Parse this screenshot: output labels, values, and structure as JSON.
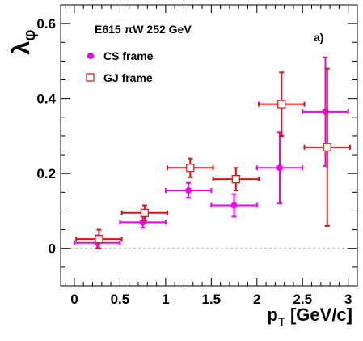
{
  "chart_data": {
    "type": "scatter",
    "title": "",
    "ylabel_symbol": "λ",
    "ylabel_subscript": "φ",
    "xlabel_main": "p",
    "xlabel_subscript": "T",
    "xlabel_unit": " [GeV/c]",
    "header": "E615 πW 252 GeV",
    "panel_label": "a)",
    "xlim": [
      -0.15,
      3.1
    ],
    "ylim": [
      -0.1,
      0.65
    ],
    "x_ticks": [
      0,
      0.5,
      1,
      1.5,
      2,
      2.5,
      3
    ],
    "x_tick_labels": [
      "0",
      "0.5",
      "1",
      "1.5",
      "2",
      "2.5",
      "3"
    ],
    "y_ticks": [
      0,
      0.2,
      0.4,
      0.6
    ],
    "y_tick_labels": [
      "0",
      "0.2",
      "0.4",
      "0.6"
    ],
    "reference_line_y": 0,
    "legend_position": "top-left",
    "series": [
      {
        "name": "CS frame",
        "color": "#ee00ee",
        "marker": "filled-circle",
        "points": [
          {
            "x": 0.25,
            "y": 0.015,
            "xerr": 0.25,
            "ylo": 0.015,
            "yhi": 0.02
          },
          {
            "x": 0.75,
            "y": 0.07,
            "xerr": 0.25,
            "ylo": 0.015,
            "yhi": 0.015
          },
          {
            "x": 1.25,
            "y": 0.155,
            "xerr": 0.25,
            "ylo": 0.02,
            "yhi": 0.02
          },
          {
            "x": 1.75,
            "y": 0.115,
            "xerr": 0.25,
            "ylo": 0.03,
            "yhi": 0.03
          },
          {
            "x": 2.25,
            "y": 0.215,
            "xerr": 0.25,
            "ylo": 0.095,
            "yhi": 0.095
          },
          {
            "x": 2.75,
            "y": 0.365,
            "xerr": 0.25,
            "ylo": 0.145,
            "yhi": 0.145
          }
        ]
      },
      {
        "name": "GJ frame",
        "color": "#dd1111",
        "marker": "open-square",
        "points": [
          {
            "x": 0.27,
            "y": 0.025,
            "xerr": 0.25,
            "ylo": 0.025,
            "yhi": 0.025
          },
          {
            "x": 0.77,
            "y": 0.095,
            "xerr": 0.25,
            "ylo": 0.02,
            "yhi": 0.02
          },
          {
            "x": 1.27,
            "y": 0.215,
            "xerr": 0.25,
            "ylo": 0.025,
            "yhi": 0.025
          },
          {
            "x": 1.77,
            "y": 0.185,
            "xerr": 0.25,
            "ylo": 0.03,
            "yhi": 0.03
          },
          {
            "x": 2.27,
            "y": 0.385,
            "xerr": 0.25,
            "ylo": 0.085,
            "yhi": 0.085
          },
          {
            "x": 2.77,
            "y": 0.27,
            "xerr": 0.25,
            "ylo": 0.21,
            "yhi": 0.21
          }
        ]
      }
    ]
  }
}
